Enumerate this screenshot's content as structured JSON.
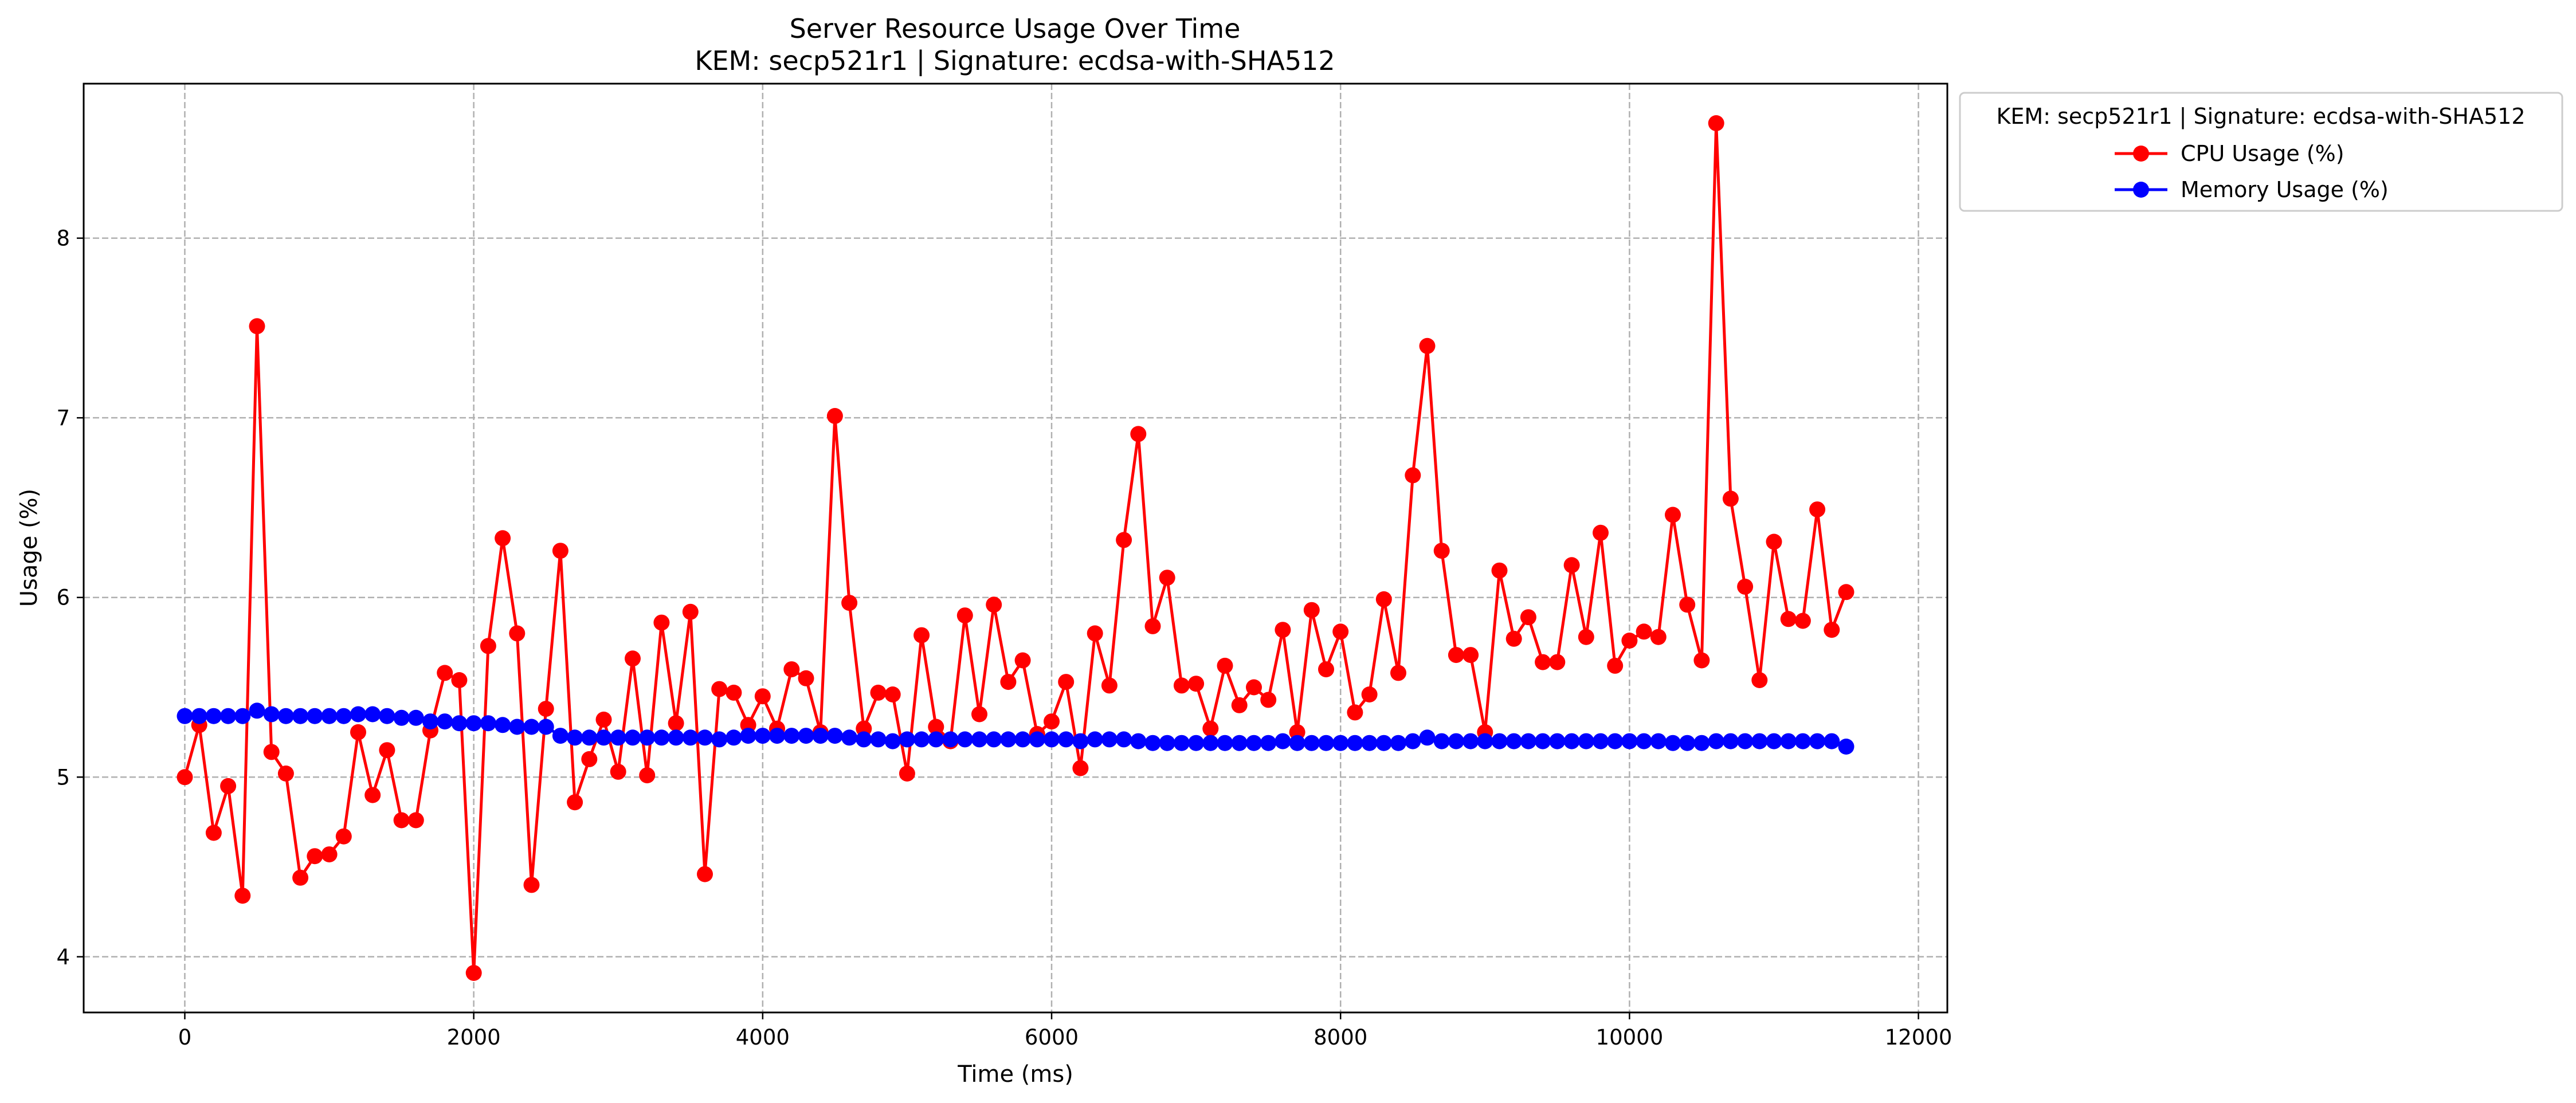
{
  "chart_data": {
    "type": "line",
    "title": "Server Resource Usage Over Time",
    "subtitle": "KEM: secp521r1 | Signature: ecdsa-with-SHA512",
    "xlabel": "Time (ms)",
    "ylabel": "Usage (%)",
    "xlim": [
      -700,
      12200
    ],
    "ylim": [
      3.69,
      8.86
    ],
    "xticks": [
      0,
      2000,
      4000,
      6000,
      8000,
      10000,
      12000
    ],
    "yticks": [
      4,
      5,
      6,
      7,
      8
    ],
    "grid": true,
    "legend": {
      "title": "KEM: secp521r1 | Signature: ecdsa-with-SHA512",
      "placement": "outside-top-right"
    },
    "x": [
      0,
      100,
      200,
      300,
      400,
      500,
      600,
      700,
      800,
      900,
      1000,
      1100,
      1200,
      1300,
      1400,
      1500,
      1600,
      1700,
      1800,
      1900,
      2000,
      2100,
      2200,
      2300,
      2400,
      2500,
      2600,
      2700,
      2800,
      2900,
      3000,
      3100,
      3200,
      3300,
      3400,
      3500,
      3600,
      3700,
      3800,
      3900,
      4000,
      4100,
      4200,
      4300,
      4400,
      4500,
      4600,
      4700,
      4800,
      4900,
      5000,
      5100,
      5200,
      5300,
      5400,
      5500,
      5600,
      5700,
      5800,
      5900,
      6000,
      6100,
      6200,
      6300,
      6400,
      6500,
      6600,
      6700,
      6800,
      6900,
      7000,
      7100,
      7200,
      7300,
      7400,
      7500,
      7600,
      7700,
      7800,
      7900,
      8000,
      8100,
      8200,
      8300,
      8400,
      8500,
      8600,
      8700,
      8800,
      8900,
      9000,
      9100,
      9200,
      9300,
      9400,
      9500,
      9600,
      9700,
      9800,
      9900,
      10000,
      10100,
      10200,
      10300,
      10400,
      10500,
      10600,
      10700,
      10800,
      10900,
      11000,
      11100,
      11200,
      11300,
      11400,
      11500
    ],
    "series": [
      {
        "name": "CPU Usage (%)",
        "color": "#ff0000",
        "values": [
          5.0,
          5.29,
          4.69,
          4.95,
          4.34,
          7.51,
          5.14,
          5.02,
          4.44,
          4.56,
          4.57,
          4.67,
          5.25,
          4.9,
          5.15,
          4.76,
          4.76,
          5.26,
          5.58,
          5.54,
          3.91,
          5.73,
          6.33,
          5.8,
          4.4,
          5.38,
          6.26,
          4.86,
          5.1,
          5.32,
          5.03,
          5.66,
          5.01,
          5.86,
          5.3,
          5.92,
          4.46,
          5.49,
          5.47,
          5.29,
          5.45,
          5.27,
          5.6,
          5.55,
          5.25,
          7.01,
          5.97,
          5.27,
          5.47,
          5.46,
          5.02,
          5.79,
          5.28,
          5.2,
          5.9,
          5.35,
          5.96,
          5.53,
          5.65,
          5.24,
          5.31,
          5.53,
          5.05,
          5.8,
          5.51,
          6.32,
          6.91,
          5.84,
          6.11,
          5.51,
          5.52,
          5.27,
          5.62,
          5.4,
          5.5,
          5.43,
          5.82,
          5.25,
          5.93,
          5.6,
          5.81,
          5.36,
          5.46,
          5.99,
          5.58,
          6.68,
          7.4,
          6.26,
          5.68,
          5.68,
          5.25,
          6.15,
          5.77,
          5.89,
          5.64,
          5.64,
          6.18,
          5.78,
          6.36,
          5.62,
          5.76,
          5.81,
          5.78,
          6.46,
          5.96,
          5.65,
          8.64,
          6.55,
          6.06,
          5.54,
          6.31,
          5.88,
          5.87,
          6.49,
          5.82,
          6.03
        ]
      },
      {
        "name": "Memory Usage (%)",
        "color": "#0000ff",
        "values": [
          5.34,
          5.34,
          5.34,
          5.34,
          5.34,
          5.37,
          5.35,
          5.34,
          5.34,
          5.34,
          5.34,
          5.34,
          5.35,
          5.35,
          5.34,
          5.33,
          5.33,
          5.31,
          5.31,
          5.3,
          5.3,
          5.3,
          5.29,
          5.28,
          5.28,
          5.28,
          5.23,
          5.22,
          5.22,
          5.22,
          5.22,
          5.22,
          5.22,
          5.22,
          5.22,
          5.22,
          5.22,
          5.21,
          5.22,
          5.23,
          5.23,
          5.23,
          5.23,
          5.23,
          5.23,
          5.23,
          5.22,
          5.21,
          5.21,
          5.2,
          5.21,
          5.21,
          5.21,
          5.21,
          5.21,
          5.21,
          5.21,
          5.21,
          5.21,
          5.21,
          5.21,
          5.21,
          5.2,
          5.21,
          5.21,
          5.21,
          5.2,
          5.19,
          5.19,
          5.19,
          5.19,
          5.19,
          5.19,
          5.19,
          5.19,
          5.19,
          5.2,
          5.19,
          5.19,
          5.19,
          5.19,
          5.19,
          5.19,
          5.19,
          5.19,
          5.2,
          5.22,
          5.2,
          5.2,
          5.2,
          5.2,
          5.2,
          5.2,
          5.2,
          5.2,
          5.2,
          5.2,
          5.2,
          5.2,
          5.2,
          5.2,
          5.2,
          5.2,
          5.19,
          5.19,
          5.19,
          5.2,
          5.2,
          5.2,
          5.2,
          5.2,
          5.2,
          5.2,
          5.2,
          5.2,
          5.17
        ]
      }
    ]
  }
}
